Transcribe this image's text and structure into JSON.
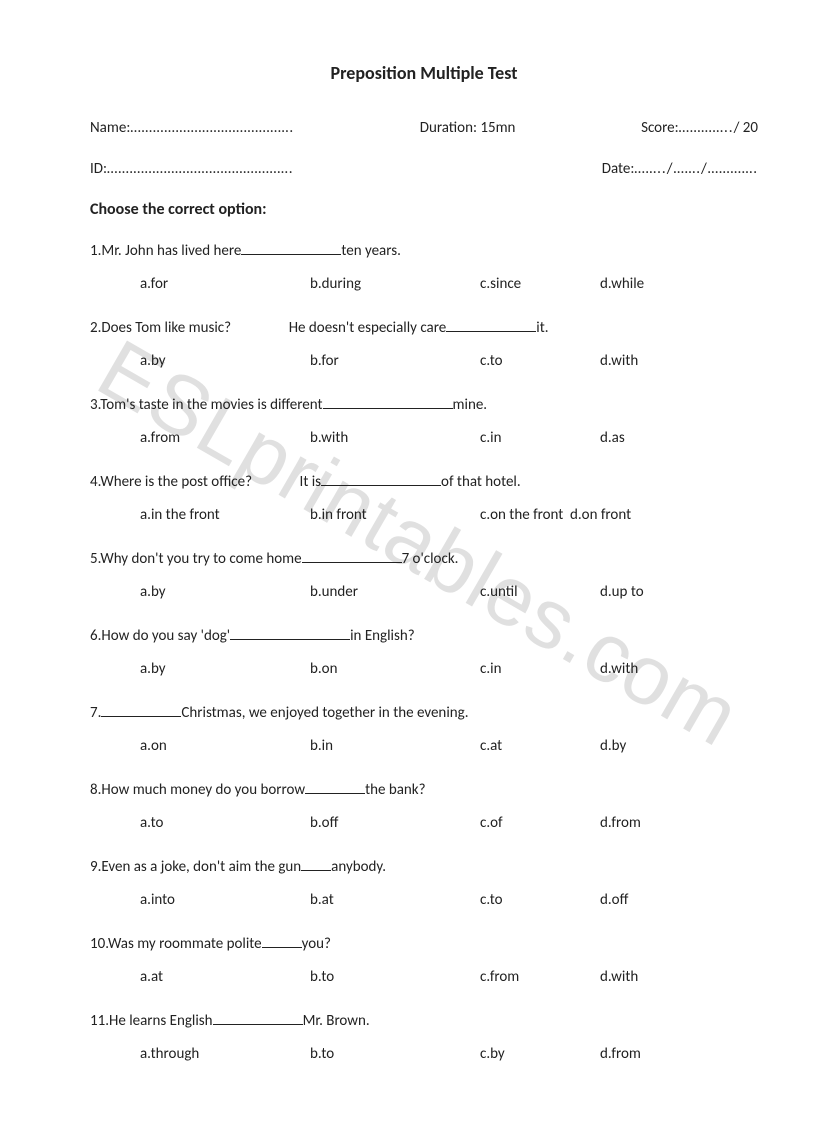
{
  "title": "Preposition Multiple Test",
  "header": {
    "name_label": "Name:",
    "name_dots": "…………………………………….",
    "duration": "Duration: 15mn",
    "score_label": "Score:",
    "score_dots": "…………..",
    "score_total": "/ 20",
    "id_label": "ID:",
    "id_dots": "………………………………………….",
    "date_label": "Date:",
    "date_dots": "……../……./…………."
  },
  "instruction": "Choose the correct option:",
  "option_col_widths": [
    170,
    170,
    120,
    100
  ],
  "questions": [
    {
      "num": "1.",
      "parts": [
        "Mr. John has lived here",
        "BLANK_100",
        "ten years."
      ],
      "options": [
        "a.for",
        "b.during",
        "c.since",
        "d.while"
      ]
    },
    {
      "num": "2.",
      "parts": [
        "Does Tom like music?                 He doesn't  especially care",
        "BLANK_90",
        "it."
      ],
      "options": [
        "a.by",
        "b.for",
        "c.to",
        "d.with"
      ]
    },
    {
      "num": "3.",
      "parts": [
        "Tom's taste in the movies is different",
        "BLANK_130",
        "mine."
      ],
      "options": [
        "a.from",
        "b.with",
        "c.in",
        "d.as"
      ]
    },
    {
      "num": "4.",
      "parts": [
        "Where is the post office?              It is",
        "BLANK_120",
        "of that hotel."
      ],
      "options": [
        "a.in the front",
        "b.in front",
        "c.on the front",
        "d.on front"
      ],
      "widths": [
        170,
        170,
        90,
        80
      ]
    },
    {
      "num": "5.",
      "parts": [
        "Why don't you try to come home",
        "BLANK_100",
        "7 o'clock."
      ],
      "options": [
        "a.by",
        "b.under",
        "c.until",
        "d.up to"
      ]
    },
    {
      "num": "6.",
      "parts": [
        "How do you say 'dog'",
        "BLANK_120",
        "in English?"
      ],
      "options": [
        "a.by",
        "b.on",
        "c.in",
        "d.with"
      ]
    },
    {
      "num": "7.",
      "parts": [
        "BLANK_80",
        "Christmas, we enjoyed together in the evening."
      ],
      "options": [
        "a.on",
        "b.in",
        "c.at",
        "d.by"
      ]
    },
    {
      "num": "8.",
      "parts": [
        "How much money do you borrow",
        "BLANK_60",
        "the bank?"
      ],
      "options": [
        "a.to",
        "b.off",
        "c.of",
        "d.from"
      ]
    },
    {
      "num": "9.",
      "parts": [
        "Even as a joke, don't aim the gun",
        "BLANK_30",
        "anybody."
      ],
      "options": [
        "a.into",
        "b.at",
        "c.to",
        "d.off"
      ]
    },
    {
      "num": "10.",
      "parts": [
        "Was my roommate polite",
        "BLANK_40",
        "you?"
      ],
      "options": [
        "a.at",
        "b.to",
        "c.from",
        "d.with"
      ]
    },
    {
      "num": "11.",
      "parts": [
        "He learns English",
        "BLANK_90",
        "Mr. Brown."
      ],
      "options": [
        "a.through",
        "b.to",
        "c.by",
        "d.from"
      ]
    }
  ],
  "watermark": "ESLprintables.com"
}
